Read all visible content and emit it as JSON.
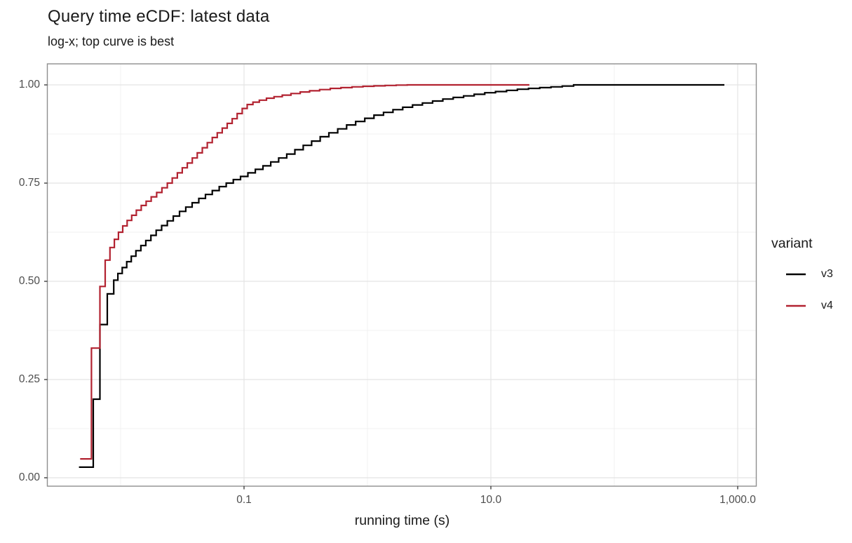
{
  "title": "Query time eCDF: latest data",
  "subtitle": "log-x; top curve is best",
  "colors": {
    "v3": "#000000",
    "v4": "#B22230",
    "grid_major": "#E4E4E4",
    "grid_minor": "#F1F1F1",
    "panel_border": "#8F8F8F",
    "axis_tick": "#333333",
    "tick_text": "#4D4D4D",
    "title_text": "#1A1A1A"
  },
  "legend": {
    "title": "variant",
    "entries": [
      {
        "label": "v3",
        "color": "#000000"
      },
      {
        "label": "v4",
        "color": "#B22230"
      }
    ]
  },
  "chart_data": {
    "type": "line",
    "subtype": "ecdf-step",
    "title": "Query time eCDF: latest data",
    "subtitle": "log-x; top curve is best",
    "xlabel": "running time (s)",
    "ylabel": "",
    "x_scale": "log10",
    "grid": true,
    "legend_position": "right",
    "legend_title": "variant",
    "x_ticks": [
      {
        "label": "0.1",
        "value": 0.1
      },
      {
        "label": "10.0",
        "value": 10
      },
      {
        "label": "1,000.0",
        "value": 1000
      }
    ],
    "x_minor_breaks": [
      0.01,
      1,
      100
    ],
    "y_ticks": [
      {
        "label": "0.00",
        "value": 0
      },
      {
        "label": "0.25",
        "value": 0.25
      },
      {
        "label": "0.50",
        "value": 0.5
      },
      {
        "label": "0.75",
        "value": 0.75
      },
      {
        "label": "1.00",
        "value": 1
      }
    ],
    "y_minor_breaks": [
      0.125,
      0.375,
      0.625,
      0.875
    ],
    "xlim_log10": [
      -2.59,
      3.15
    ],
    "ylim": [
      -0.04,
      1.05
    ],
    "series": [
      {
        "name": "v3",
        "color": "#000000",
        "points": [
          [
            0.0046,
            0.027
          ],
          [
            0.006,
            0.2
          ],
          [
            0.0068,
            0.39
          ],
          [
            0.0078,
            0.468
          ],
          [
            0.0088,
            0.503
          ],
          [
            0.0095,
            0.52
          ],
          [
            0.0103,
            0.535
          ],
          [
            0.0112,
            0.55
          ],
          [
            0.0122,
            0.564
          ],
          [
            0.0133,
            0.578
          ],
          [
            0.0146,
            0.591
          ],
          [
            0.016,
            0.604
          ],
          [
            0.0176,
            0.617
          ],
          [
            0.0194,
            0.63
          ],
          [
            0.0215,
            0.642
          ],
          [
            0.0239,
            0.654
          ],
          [
            0.0267,
            0.666
          ],
          [
            0.03,
            0.678
          ],
          [
            0.0337,
            0.689
          ],
          [
            0.038,
            0.7
          ],
          [
            0.043,
            0.711
          ],
          [
            0.0487,
            0.721
          ],
          [
            0.0553,
            0.731
          ],
          [
            0.0629,
            0.741
          ],
          [
            0.0717,
            0.75
          ],
          [
            0.0819,
            0.759
          ],
          [
            0.0937,
            0.767
          ],
          [
            0.1075,
            0.776
          ],
          [
            0.1235,
            0.785
          ],
          [
            0.1424,
            0.794
          ],
          [
            0.1646,
            0.804
          ],
          [
            0.1908,
            0.814
          ],
          [
            0.2217,
            0.824
          ],
          [
            0.2582,
            0.835
          ],
          [
            0.3015,
            0.846
          ],
          [
            0.3528,
            0.857
          ],
          [
            0.4139,
            0.868
          ],
          [
            0.487,
            0.878
          ],
          [
            0.574,
            0.888
          ],
          [
            0.678,
            0.898
          ],
          [
            0.803,
            0.907
          ],
          [
            0.952,
            0.915
          ],
          [
            1.13,
            0.923
          ],
          [
            1.35,
            0.93
          ],
          [
            1.61,
            0.937
          ],
          [
            1.93,
            0.943
          ],
          [
            2.32,
            0.949
          ],
          [
            2.79,
            0.954
          ],
          [
            3.37,
            0.959
          ],
          [
            4.08,
            0.964
          ],
          [
            4.95,
            0.968
          ],
          [
            6.01,
            0.972
          ],
          [
            7.32,
            0.976
          ],
          [
            8.93,
            0.98
          ],
          [
            10.9,
            0.983
          ],
          [
            13.4,
            0.986
          ],
          [
            16.4,
            0.989
          ],
          [
            20.2,
            0.991
          ],
          [
            24.9,
            0.993
          ],
          [
            30.7,
            0.995
          ],
          [
            37.9,
            0.997
          ],
          [
            46.8,
            1.0
          ],
          [
            780,
            1.0
          ]
        ]
      },
      {
        "name": "v4",
        "color": "#B22230",
        "points": [
          [
            0.0047,
            0.048
          ],
          [
            0.0058,
            0.33
          ],
          [
            0.0068,
            0.487
          ],
          [
            0.0075,
            0.554
          ],
          [
            0.0082,
            0.586
          ],
          [
            0.0089,
            0.607
          ],
          [
            0.0096,
            0.625
          ],
          [
            0.0104,
            0.641
          ],
          [
            0.0113,
            0.655
          ],
          [
            0.0123,
            0.668
          ],
          [
            0.0134,
            0.681
          ],
          [
            0.0147,
            0.693
          ],
          [
            0.0161,
            0.704
          ],
          [
            0.0177,
            0.715
          ],
          [
            0.0196,
            0.726
          ],
          [
            0.0216,
            0.738
          ],
          [
            0.0239,
            0.75
          ],
          [
            0.0262,
            0.763
          ],
          [
            0.0288,
            0.776
          ],
          [
            0.0316,
            0.789
          ],
          [
            0.0347,
            0.801
          ],
          [
            0.0381,
            0.814
          ],
          [
            0.0418,
            0.827
          ],
          [
            0.0459,
            0.84
          ],
          [
            0.0504,
            0.853
          ],
          [
            0.0553,
            0.866
          ],
          [
            0.0607,
            0.878
          ],
          [
            0.0666,
            0.89
          ],
          [
            0.0731,
            0.902
          ],
          [
            0.0802,
            0.914
          ],
          [
            0.088,
            0.927
          ],
          [
            0.0966,
            0.94
          ],
          [
            0.106,
            0.95
          ],
          [
            0.118,
            0.956
          ],
          [
            0.133,
            0.961
          ],
          [
            0.152,
            0.966
          ],
          [
            0.175,
            0.97
          ],
          [
            0.204,
            0.974
          ],
          [
            0.24,
            0.978
          ],
          [
            0.285,
            0.982
          ],
          [
            0.34,
            0.985
          ],
          [
            0.41,
            0.988
          ],
          [
            0.5,
            0.991
          ],
          [
            0.61,
            0.993
          ],
          [
            0.75,
            0.995
          ],
          [
            0.92,
            0.9965
          ],
          [
            1.13,
            0.9975
          ],
          [
            1.39,
            0.9985
          ],
          [
            1.71,
            0.9995
          ],
          [
            2.1,
            1.0
          ],
          [
            20.5,
            1.0
          ]
        ]
      }
    ]
  }
}
